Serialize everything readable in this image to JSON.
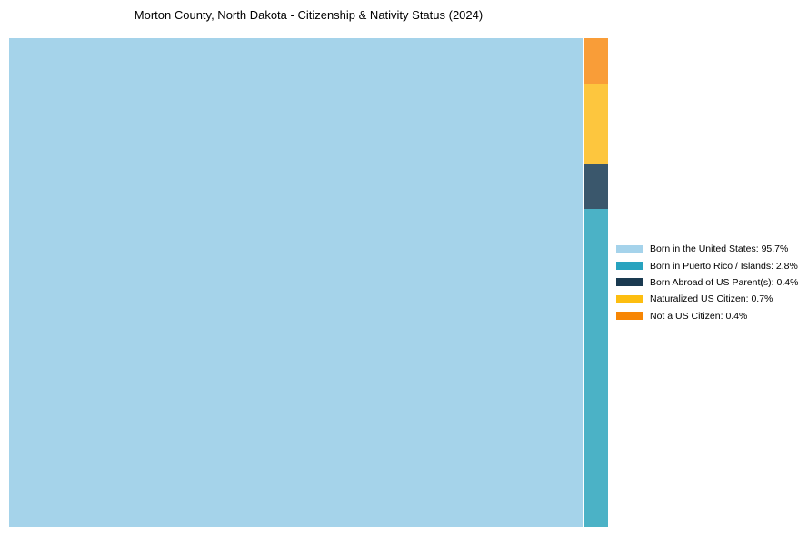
{
  "title": "Morton County, North Dakota - Citizenship & Nativity Status (2024)",
  "chart_data": {
    "type": "treemap",
    "title": "Morton County, North Dakota - Citizenship & Nativity Status (2024)",
    "categories": [
      "Born in the United States",
      "Born in Puerto Rico / Islands",
      "Born Abroad of US Parent(s)",
      "Naturalized US Citizen",
      "Not a US Citizen"
    ],
    "values": [
      95.7,
      2.8,
      0.4,
      0.7,
      0.4
    ],
    "unit": "%",
    "colors": [
      "#A5D3EA",
      "#4BB2C6",
      "#3A576C",
      "#FDC63E",
      "#F99D38"
    ],
    "legend_position": "right",
    "layout_hint": "dominant category fills left block; remaining categories stacked in a right column from bottom (largest) to top (smallest), grid off, no axes"
  },
  "legend": {
    "items": [
      {
        "label": "Born in the United States: 95.7%",
        "swatch_color": "#A5D3EB"
      },
      {
        "label": "Born in Puerto Rico / Islands: 2.8%",
        "swatch_color": "#28A3BF"
      },
      {
        "label": "Born Abroad of US Parent(s): 0.4%",
        "swatch_color": "#1A3A50"
      },
      {
        "label": "Naturalized US Citizen: 0.7%",
        "swatch_color": "#FDBE10"
      },
      {
        "label": "Not a US Citizen: 0.4%",
        "swatch_color": "#F78604"
      }
    ]
  }
}
